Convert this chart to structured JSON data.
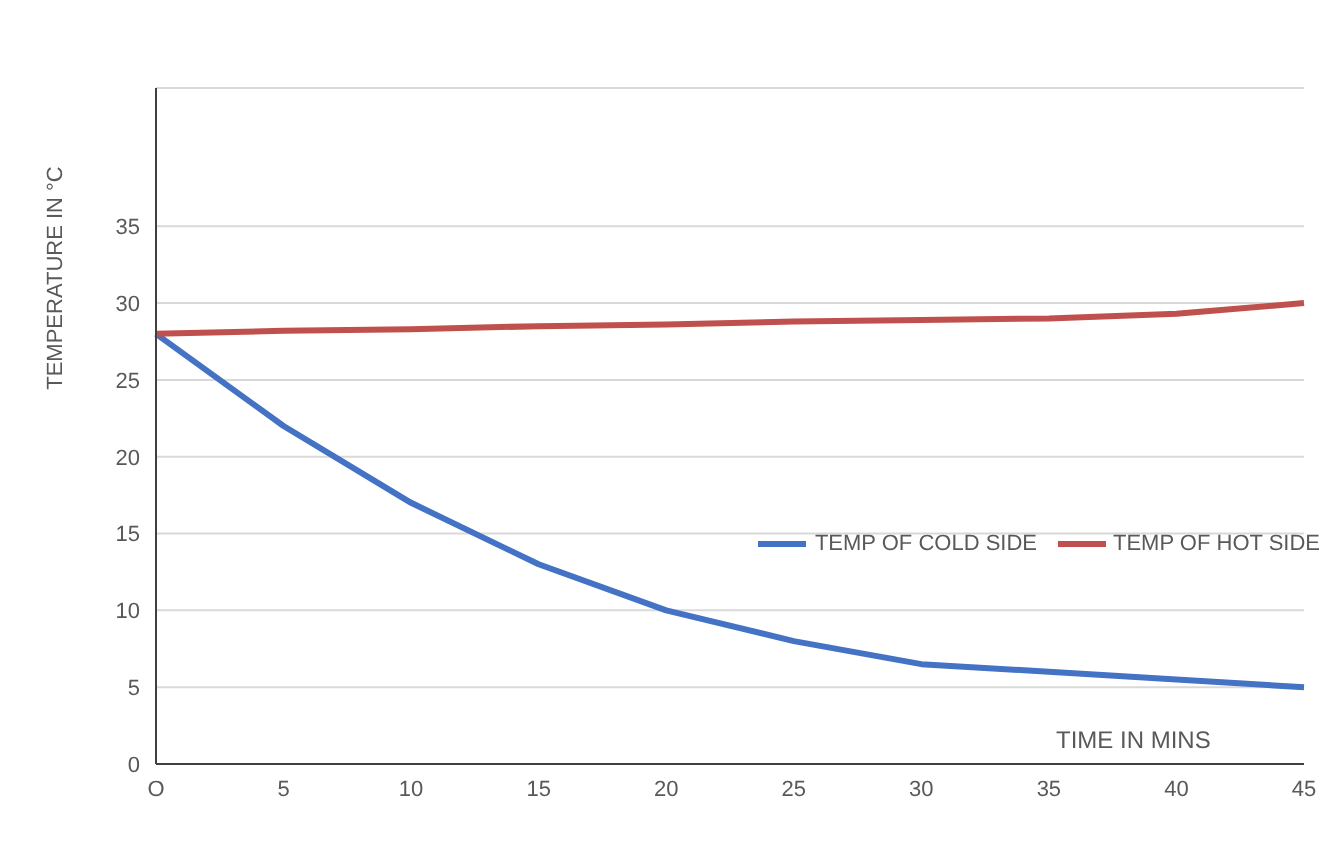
{
  "chart_data": {
    "type": "line",
    "xlabel": "TIME IN MINS",
    "ylabel": "TEMPERATURE IN °C",
    "categories": [
      "O",
      "5",
      "10",
      "15",
      "20",
      "25",
      "30",
      "35",
      "40",
      "45"
    ],
    "series": [
      {
        "name": "TEMP OF COLD SIDE",
        "color": "#4472c4",
        "values": [
          28,
          22,
          17,
          13,
          10,
          8,
          6.5,
          6,
          5.5,
          5
        ]
      },
      {
        "name": "TEMP OF HOT SIDE",
        "color": "#c0504d",
        "values": [
          28,
          28.2,
          28.3,
          28.5,
          28.6,
          28.8,
          28.9,
          29,
          29.3,
          30
        ]
      }
    ],
    "ylim": [
      0,
      44
    ],
    "yticks": [
      0,
      5,
      10,
      15,
      20,
      25,
      30,
      35
    ],
    "grid": "y",
    "legend": "right",
    "marker": "none",
    "line_style": "solid"
  }
}
